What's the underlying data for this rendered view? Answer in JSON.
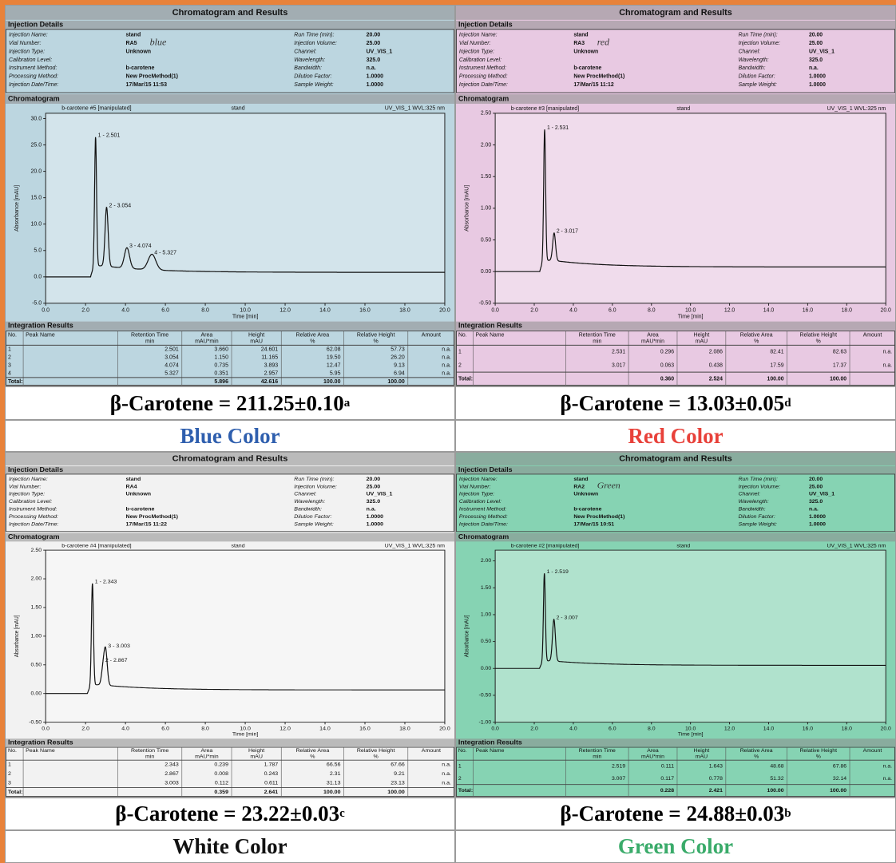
{
  "panels": [
    {
      "background": "#bcd6e0",
      "title": "Chromatogram and Results",
      "injection_section": "Injection Details",
      "details_left": [
        {
          "label": "Injection Name:",
          "value": "stand"
        },
        {
          "label": "Vial Number:",
          "value": "RA5"
        },
        {
          "label": "Injection Type:",
          "value": "Unknown"
        },
        {
          "label": "Calibration Level:"
        },
        {
          "label": "Instrument Method:",
          "value": "b-carotene"
        },
        {
          "label": "Processing Method:",
          "value": "New ProcMethod(1)"
        },
        {
          "label": "Injection Date/Time:",
          "value": "17/Mar/15 11:53"
        }
      ],
      "handwriting": "blue",
      "details_right": [
        {
          "label": "Run Time (min):",
          "value": "20.00"
        },
        {
          "label": "Injection Volume:",
          "value": "25.00"
        },
        {
          "label": "Channel:",
          "value": "UV_VIS_1"
        },
        {
          "label": "Wavelength:",
          "value": "325.0"
        },
        {
          "label": "Bandwidth:",
          "value": "n.a."
        },
        {
          "label": "Dilution Factor:",
          "value": "1.0000"
        },
        {
          "label": "Sample Weight:",
          "value": "1.0000"
        }
      ],
      "chromatogram_section": "Chromatogram",
      "chart": {
        "type": "line",
        "header_left": "b-carotene #5 [manipulated]",
        "header_mid": "stand",
        "header_right": "UV_VIS_1 WVL:325 nm",
        "ylabel": "Absorbance [mAU]",
        "xlabel": "Time [min]",
        "xlim": [
          0,
          20
        ],
        "xticks": [
          {
            "value": 0,
            "label": "0.0"
          },
          {
            "value": 2,
            "label": "2.0"
          },
          {
            "value": 4,
            "label": "4.0"
          },
          {
            "value": 6,
            "label": "6.0"
          },
          {
            "value": 8,
            "label": "8.0"
          },
          {
            "value": 10,
            "label": "10.0"
          },
          {
            "value": 12,
            "label": "12.0"
          },
          {
            "value": 14,
            "label": "14.0"
          },
          {
            "value": 16,
            "label": "16.0"
          },
          {
            "value": 18,
            "label": "18.0"
          },
          {
            "value": 20,
            "label": "20.0"
          }
        ],
        "ylim": [
          -5,
          31
        ],
        "yticks": [
          {
            "value": -5,
            "label": "-5.0"
          },
          {
            "value": 0,
            "label": "0.0"
          },
          {
            "value": 5,
            "label": "5.0"
          },
          {
            "value": 10,
            "label": "10.0"
          },
          {
            "value": 15,
            "label": "15.0"
          },
          {
            "value": 20,
            "label": "20.0"
          },
          {
            "value": 25,
            "label": "25.0"
          },
          {
            "value": 30,
            "label": "30.0"
          }
        ],
        "peak_labels": [
          "1 - 2.501",
          "2 - 3.054",
          "3 - 4.074",
          "4 - 5.327"
        ]
      },
      "integration_section": "Integration Results",
      "table": {
        "header": [
          {
            "name": "No."
          },
          {
            "name": "Peak Name"
          },
          {
            "name": "Retention Time",
            "unit": "min"
          },
          {
            "name": "Area",
            "unit": "mAU*min"
          },
          {
            "name": "Height",
            "unit": "mAU"
          },
          {
            "name": "Relative Area",
            "unit": "%"
          },
          {
            "name": "Relative Height",
            "unit": "%"
          },
          {
            "name": "Amount"
          }
        ],
        "rows": [
          [
            "1",
            "2.501",
            "3.660",
            "24.601",
            "62.08",
            "57.73",
            "n.a."
          ],
          [
            "2",
            "3.054",
            "1.150",
            "11.165",
            "19.50",
            "26.20",
            "n.a."
          ],
          [
            "3",
            "4.074",
            "0.735",
            "3.893",
            "12.47",
            "9.13",
            "n.a."
          ],
          [
            "4",
            "5.327",
            "0.351",
            "2.957",
            "5.95",
            "6.94",
            "n.a."
          ]
        ],
        "total": {
          "label": "Total:",
          "area": "5.896",
          "height": "42.616",
          "rel_area": "100.00",
          "rel_height": "100.00"
        }
      },
      "caption": {
        "text": "β-Carotene = 211.25±0.10",
        "superscript": "a"
      },
      "color_label": "Blue Color",
      "color_label_color": "#2f5fae"
    },
    {
      "background": "#e8c9e2",
      "title": "Chromatogram and Results",
      "injection_section": "Injection Details",
      "details_left": [
        {
          "label": "Injection Name:",
          "value": "stand"
        },
        {
          "label": "Vial Number:",
          "value": "RA3"
        },
        {
          "label": "Injection Type:",
          "value": "Unknown"
        },
        {
          "label": "Calibration Level:"
        },
        {
          "label": "Instrument Method:",
          "value": "b-carotene"
        },
        {
          "label": "Processing Method:",
          "value": "New ProcMethod(1)"
        },
        {
          "label": "Injection Date/Time:",
          "value": "17/Mar/15 11:12"
        }
      ],
      "handwriting": "red",
      "details_right": [
        {
          "label": "Run Time (min):",
          "value": "20.00"
        },
        {
          "label": "Injection Volume:",
          "value": "25.00"
        },
        {
          "label": "Channel:",
          "value": "UV_VIS_1"
        },
        {
          "label": "Wavelength:",
          "value": "325.0"
        },
        {
          "label": "Bandwidth:",
          "value": "n.a."
        },
        {
          "label": "Dilution Factor:",
          "value": "1.0000"
        },
        {
          "label": "Sample Weight:",
          "value": "1.0000"
        }
      ],
      "chromatogram_section": "Chromatogram",
      "chart": {
        "type": "line",
        "header_left": "b-carotene #3 [manipulated]",
        "header_mid": "stand",
        "header_right": "UV_VIS_1 WVL:325 nm",
        "ylabel": "Absorbance [mAU]",
        "xlabel": "Time [min]",
        "xlim": [
          0,
          20
        ],
        "xticks": [
          {
            "value": 0,
            "label": "0.0"
          },
          {
            "value": 2,
            "label": "2.0"
          },
          {
            "value": 4,
            "label": "4.0"
          },
          {
            "value": 6,
            "label": "6.0"
          },
          {
            "value": 8,
            "label": "8.0"
          },
          {
            "value": 10,
            "label": "10.0"
          },
          {
            "value": 12,
            "label": "12.0"
          },
          {
            "value": 14,
            "label": "14.0"
          },
          {
            "value": 16,
            "label": "16.0"
          },
          {
            "value": 18,
            "label": "18.0"
          },
          {
            "value": 20,
            "label": "20.0"
          }
        ],
        "ylim": [
          -0.5,
          2.5
        ],
        "yticks": [
          {
            "value": -0.5,
            "label": "-0.50"
          },
          {
            "value": 0,
            "label": "0.00"
          },
          {
            "value": 0.5,
            "label": "0.50"
          },
          {
            "value": 1,
            "label": "1.00"
          },
          {
            "value": 1.5,
            "label": "1.50"
          },
          {
            "value": 2,
            "label": "2.00"
          },
          {
            "value": 2.5,
            "label": "2.50"
          }
        ],
        "peak_labels": [
          "1 - 2.531",
          "2 - 3.017"
        ]
      },
      "integration_section": "Integration Results",
      "table": {
        "header": [
          {
            "name": "No."
          },
          {
            "name": "Peak Name"
          },
          {
            "name": "Retention Time",
            "unit": "min"
          },
          {
            "name": "Area",
            "unit": "mAU*min"
          },
          {
            "name": "Height",
            "unit": "mAU"
          },
          {
            "name": "Relative Area",
            "unit": "%"
          },
          {
            "name": "Relative Height",
            "unit": "%"
          },
          {
            "name": "Amount"
          }
        ],
        "rows": [
          [
            "1",
            "2.531",
            "0.296",
            "2.086",
            "82.41",
            "82.63",
            "n.a."
          ],
          [
            "2",
            "3.017",
            "0.063",
            "0.438",
            "17.59",
            "17.37",
            "n.a."
          ]
        ],
        "total": {
          "label": "Total:",
          "area": "0.360",
          "height": "2.524",
          "rel_area": "100.00",
          "rel_height": "100.00"
        }
      },
      "caption": {
        "text": "β-Carotene =  13.03±0.05",
        "superscript": "d"
      },
      "color_label": "Red Color",
      "color_label_color": "#e8413a"
    },
    {
      "background": "#f2f2f2",
      "title": "Chromatogram and Results",
      "injection_section": "Injection Details",
      "details_left": [
        {
          "label": "Injection Name:",
          "value": "stand"
        },
        {
          "label": "Vial Number:",
          "value": "RA4"
        },
        {
          "label": "Injection Type:",
          "value": "Unknown"
        },
        {
          "label": "Calibration Level:"
        },
        {
          "label": "Instrument Method:",
          "value": "b-carotene"
        },
        {
          "label": "Processing Method:",
          "value": "New ProcMethod(1)"
        },
        {
          "label": "Injection Date/Time:",
          "value": "17/Mar/15 11:22"
        }
      ],
      "details_right": [
        {
          "label": "Run Time (min):",
          "value": "20.00"
        },
        {
          "label": "Injection Volume:",
          "value": "25.00"
        },
        {
          "label": "Channel:",
          "value": "UV_VIS_1"
        },
        {
          "label": "Wavelength:",
          "value": "325.0"
        },
        {
          "label": "Bandwidth:",
          "value": "n.a."
        },
        {
          "label": "Dilution Factor:",
          "value": "1.0000"
        },
        {
          "label": "Sample Weight:",
          "value": "1.0000"
        }
      ],
      "chromatogram_section": "Chromatogram",
      "chart": {
        "type": "line",
        "header_left": "b-carotene #4 [manipulated]",
        "header_mid": "stand",
        "header_right": "UV_VIS_1 WVL:325 nm",
        "ylabel": "Absorbance [mAU]",
        "xlabel": "Time [min]",
        "xlim": [
          0,
          20
        ],
        "xticks": [
          {
            "value": 0,
            "label": "0.0"
          },
          {
            "value": 2,
            "label": "2.0"
          },
          {
            "value": 4,
            "label": "4.0"
          },
          {
            "value": 6,
            "label": "6.0"
          },
          {
            "value": 8,
            "label": "8.0"
          },
          {
            "value": 10,
            "label": "10.0"
          },
          {
            "value": 12,
            "label": "12.0"
          },
          {
            "value": 14,
            "label": "14.0"
          },
          {
            "value": 16,
            "label": "16.0"
          },
          {
            "value": 18,
            "label": "18.0"
          },
          {
            "value": 20,
            "label": "20.0"
          }
        ],
        "ylim": [
          -0.5,
          2.5
        ],
        "yticks": [
          {
            "value": -0.5,
            "label": "-0.50"
          },
          {
            "value": 0,
            "label": "0.00"
          },
          {
            "value": 0.5,
            "label": "0.50"
          },
          {
            "value": 1,
            "label": "1.00"
          },
          {
            "value": 1.5,
            "label": "1.50"
          },
          {
            "value": 2,
            "label": "2.00"
          },
          {
            "value": 2.5,
            "label": "2.50"
          }
        ],
        "peak_labels": [
          "1 - 2.343",
          "2 - 2.867",
          "3 - 3.003"
        ]
      },
      "integration_section": "Integration Results",
      "table": {
        "header": [
          {
            "name": "No."
          },
          {
            "name": "Peak Name"
          },
          {
            "name": "Retention Time",
            "unit": "min"
          },
          {
            "name": "Area",
            "unit": "mAU*min"
          },
          {
            "name": "Height",
            "unit": "mAU"
          },
          {
            "name": "Relative Area",
            "unit": "%"
          },
          {
            "name": "Relative Height",
            "unit": "%"
          },
          {
            "name": "Amount"
          }
        ],
        "rows": [
          [
            "1",
            "2.343",
            "0.239",
            "1.787",
            "66.56",
            "67.66",
            "n.a."
          ],
          [
            "2",
            "2.867",
            "0.008",
            "0.243",
            "2.31",
            "9.21",
            "n.a."
          ],
          [
            "3",
            "3.003",
            "0.112",
            "0.611",
            "31.13",
            "23.13",
            "n.a."
          ]
        ],
        "total": {
          "label": "Total:",
          "area": "0.359",
          "height": "2.641",
          "rel_area": "100.00",
          "rel_height": "100.00"
        }
      },
      "caption": {
        "text": "β-Carotene = 23.22±0.03",
        "superscript": "c"
      },
      "color_label": "White Color",
      "color_label_color": "#111111"
    },
    {
      "background": "#86d3b3",
      "title": "Chromatogram and Results",
      "injection_section": "Injection Details",
      "details_left": [
        {
          "label": "Injection Name:",
          "value": "stand"
        },
        {
          "label": "Vial Number:",
          "value": "RA2"
        },
        {
          "label": "Injection Type:",
          "value": "Unknown"
        },
        {
          "label": "Calibration Level:"
        },
        {
          "label": "Instrument Method:",
          "value": "b-carotene"
        },
        {
          "label": "Processing Method:",
          "value": "New ProcMethod(1)"
        },
        {
          "label": "Injection Date/Time:",
          "value": "17/Mar/15 10:51"
        }
      ],
      "handwriting": "Green",
      "details_right": [
        {
          "label": "Run Time (min):",
          "value": "20.00"
        },
        {
          "label": "Injection Volume:",
          "value": "25.00"
        },
        {
          "label": "Channel:",
          "value": "UV_VIS_1"
        },
        {
          "label": "Wavelength:",
          "value": "325.0"
        },
        {
          "label": "Bandwidth:",
          "value": "n.a."
        },
        {
          "label": "Dilution Factor:",
          "value": "1.0000"
        },
        {
          "label": "Sample Weight:",
          "value": "1.0000"
        }
      ],
      "chromatogram_section": "Chromatogram",
      "chart": {
        "type": "line",
        "header_left": "b-carotene #2 [manipulated]",
        "header_mid": "stand",
        "header_right": "UV_VIS_1 WVL:325 nm",
        "ylabel": "Absorbance [mAU]",
        "xlabel": "Time [min]",
        "xlim": [
          0,
          20
        ],
        "xticks": [
          {
            "value": 0,
            "label": "0.0"
          },
          {
            "value": 2,
            "label": "2.0"
          },
          {
            "value": 4,
            "label": "4.0"
          },
          {
            "value": 6,
            "label": "6.0"
          },
          {
            "value": 8,
            "label": "8.0"
          },
          {
            "value": 10,
            "label": "10.0"
          },
          {
            "value": 12,
            "label": "12.0"
          },
          {
            "value": 14,
            "label": "14.0"
          },
          {
            "value": 16,
            "label": "16.0"
          },
          {
            "value": 18,
            "label": "18.0"
          },
          {
            "value": 20,
            "label": "20.0"
          }
        ],
        "ylim": [
          -1,
          2.2
        ],
        "yticks": [
          {
            "value": -1,
            "label": "-1.00"
          },
          {
            "value": -0.5,
            "label": "-0.50"
          },
          {
            "value": 0,
            "label": "0.00"
          },
          {
            "value": 0.5,
            "label": "0.50"
          },
          {
            "value": 1,
            "label": "1.00"
          },
          {
            "value": 1.5,
            "label": "1.50"
          },
          {
            "value": 2,
            "label": "2.00"
          }
        ],
        "peak_labels": [
          "1 - 2.519",
          "2 - 3.007"
        ]
      },
      "integration_section": "Integration Results",
      "table": {
        "header": [
          {
            "name": "No."
          },
          {
            "name": "Peak Name"
          },
          {
            "name": "Retention Time",
            "unit": "min"
          },
          {
            "name": "Area",
            "unit": "mAU*min"
          },
          {
            "name": "Height",
            "unit": "mAU"
          },
          {
            "name": "Relative Area",
            "unit": "%"
          },
          {
            "name": "Relative Height",
            "unit": "%"
          },
          {
            "name": "Amount"
          }
        ],
        "rows": [
          [
            "1",
            "2.519",
            "0.111",
            "1.643",
            "48.68",
            "67.86",
            "n.a."
          ],
          [
            "2",
            "3.007",
            "0.117",
            "0.778",
            "51.32",
            "32.14",
            "n.a."
          ]
        ],
        "total": {
          "label": "Total:",
          "area": "0.228",
          "height": "2.421",
          "rel_area": "100.00",
          "rel_height": "100.00"
        }
      },
      "caption": {
        "text": "β-Carotene =  24.88±0.03",
        "superscript": "b"
      },
      "color_label": "Green Color",
      "color_label_color": "#3aab6a"
    }
  ]
}
